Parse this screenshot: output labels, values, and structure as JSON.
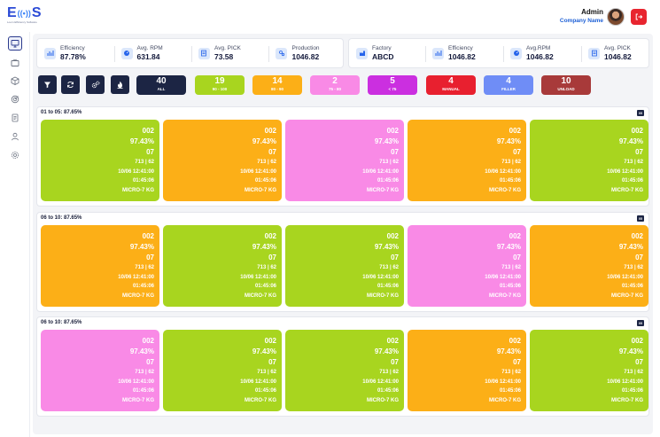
{
  "header": {
    "logo_text": "EMS",
    "logo_subtitle": "Loom Efficiency Software",
    "user_name": "Admin",
    "company_name": "Company Name"
  },
  "sidebar": {
    "items": [
      {
        "icon": "monitor-icon",
        "active": true
      },
      {
        "icon": "tv-icon",
        "active": false
      },
      {
        "icon": "box-icon",
        "active": false
      },
      {
        "icon": "target-icon",
        "active": false
      },
      {
        "icon": "document-icon",
        "active": false
      },
      {
        "icon": "user-icon",
        "active": false
      },
      {
        "icon": "settings-icon",
        "active": false
      }
    ]
  },
  "kpi_left": [
    {
      "label": "Efficiency",
      "value": "87.78%",
      "icon": "chart-icon"
    },
    {
      "label": "Avg. RPM",
      "value": "631.84",
      "icon": "gauge-icon"
    },
    {
      "label": "Avg. PICK",
      "value": "73.58",
      "icon": "pick-icon"
    },
    {
      "label": "Production",
      "value": "1046.82",
      "icon": "production-icon"
    }
  ],
  "kpi_right": [
    {
      "label": "Factory",
      "value": "ABCD",
      "icon": "factory-icon"
    },
    {
      "label": "Efficiency",
      "value": "1046.82",
      "icon": "chart-icon"
    },
    {
      "label": "Avg.RPM",
      "value": "1046.82",
      "icon": "gauge-icon"
    },
    {
      "label": "Avg. PICK",
      "value": "1046.82",
      "icon": "pick-icon"
    }
  ],
  "toolbar": {
    "buttons": [
      "filter-icon",
      "refresh-icon",
      "settings-icon",
      "flame-icon"
    ]
  },
  "chips": [
    {
      "count": "40",
      "label": "ALL",
      "color": "#1c2544"
    },
    {
      "count": "19",
      "label": "90 - 100",
      "color": "#a8d51f"
    },
    {
      "count": "14",
      "label": "80 - 90",
      "color": "#fcaf17"
    },
    {
      "count": "2",
      "label": "75 - 80",
      "color": "#f98ae6"
    },
    {
      "count": "5",
      "label": "< 75",
      "color": "#cb2fe0"
    },
    {
      "count": "4",
      "label": "MANUAL",
      "color": "#e8202f"
    },
    {
      "count": "4",
      "label": "FILLER",
      "color": "#6f8df6"
    },
    {
      "count": "10",
      "label": "UNLOAD",
      "color": "#a83a3a"
    }
  ],
  "sections": [
    {
      "title": "01 to 05: 87.65%",
      "badge": "05",
      "machines": [
        {
          "color": "#a8d51f",
          "id": "002",
          "eff": "97.43%",
          "code": "07",
          "ratio": "713 | 62",
          "datetime": "10/06 12:41:00",
          "duration": "01:45:06",
          "label": "MICRO-7 KG"
        },
        {
          "color": "#fcaf17",
          "id": "002",
          "eff": "97.43%",
          "code": "07",
          "ratio": "713 | 62",
          "datetime": "10/06 12:41:00",
          "duration": "01:45:06",
          "label": "MICRO-7 KG"
        },
        {
          "color": "#f98ae6",
          "id": "002",
          "eff": "97.43%",
          "code": "07",
          "ratio": "713 | 62",
          "datetime": "10/06 12:41:00",
          "duration": "01:45:06",
          "label": "MICRO-7 KG"
        },
        {
          "color": "#fcaf17",
          "id": "002",
          "eff": "97.43%",
          "code": "07",
          "ratio": "713 | 62",
          "datetime": "10/06 12:41:00",
          "duration": "01:45:06",
          "label": "MICRO-7 KG"
        },
        {
          "color": "#a8d51f",
          "id": "002",
          "eff": "97.43%",
          "code": "07",
          "ratio": "713 | 62",
          "datetime": "10/06 12:41:00",
          "duration": "01:45:06",
          "label": "MICRO-7 KG"
        }
      ]
    },
    {
      "title": "06 to 10: 87.65%",
      "badge": "05",
      "machines": [
        {
          "color": "#fcaf17",
          "id": "002",
          "eff": "97.43%",
          "code": "07",
          "ratio": "713 | 62",
          "datetime": "10/06 12:41:00",
          "duration": "01:45:06",
          "label": "MICRO-7 KG"
        },
        {
          "color": "#a8d51f",
          "id": "002",
          "eff": "97.43%",
          "code": "07",
          "ratio": "713 | 62",
          "datetime": "10/06 12:41:00",
          "duration": "01:45:06",
          "label": "MICRO-7 KG"
        },
        {
          "color": "#a8d51f",
          "id": "002",
          "eff": "97.43%",
          "code": "07",
          "ratio": "713 | 62",
          "datetime": "10/06 12:41:00",
          "duration": "01:45:06",
          "label": "MICRO-7 KG"
        },
        {
          "color": "#f98ae6",
          "id": "002",
          "eff": "97.43%",
          "code": "07",
          "ratio": "713 | 62",
          "datetime": "10/06 12:41:00",
          "duration": "01:45:06",
          "label": "MICRO-7 KG"
        },
        {
          "color": "#fcaf17",
          "id": "002",
          "eff": "97.43%",
          "code": "07",
          "ratio": "713 | 62",
          "datetime": "10/06 12:41:00",
          "duration": "01:45:06",
          "label": "MICRO-7 KG"
        }
      ]
    },
    {
      "title": "06 to 10: 87.65%",
      "badge": "05",
      "machines": [
        {
          "color": "#f98ae6",
          "id": "002",
          "eff": "97.43%",
          "code": "07",
          "ratio": "713 | 62",
          "datetime": "10/06 12:41:00",
          "duration": "01:45:06",
          "label": "MICRO-7 KG"
        },
        {
          "color": "#a8d51f",
          "id": "002",
          "eff": "97.43%",
          "code": "07",
          "ratio": "713 | 62",
          "datetime": "10/06 12:41:00",
          "duration": "01:45:06",
          "label": "MICRO-7 KG"
        },
        {
          "color": "#a8d51f",
          "id": "002",
          "eff": "97.43%",
          "code": "07",
          "ratio": "713 | 62",
          "datetime": "10/06 12:41:00",
          "duration": "01:45:06",
          "label": "MICRO-7 KG"
        },
        {
          "color": "#fcaf17",
          "id": "002",
          "eff": "97.43%",
          "code": "07",
          "ratio": "713 | 62",
          "datetime": "10/06 12:41:00",
          "duration": "01:45:06",
          "label": "MICRO-7 KG"
        },
        {
          "color": "#a8d51f",
          "id": "002",
          "eff": "97.43%",
          "code": "07",
          "ratio": "713 | 62",
          "datetime": "10/06 12:41:00",
          "duration": "01:45:06",
          "label": "MICRO-7 KG"
        }
      ]
    }
  ]
}
